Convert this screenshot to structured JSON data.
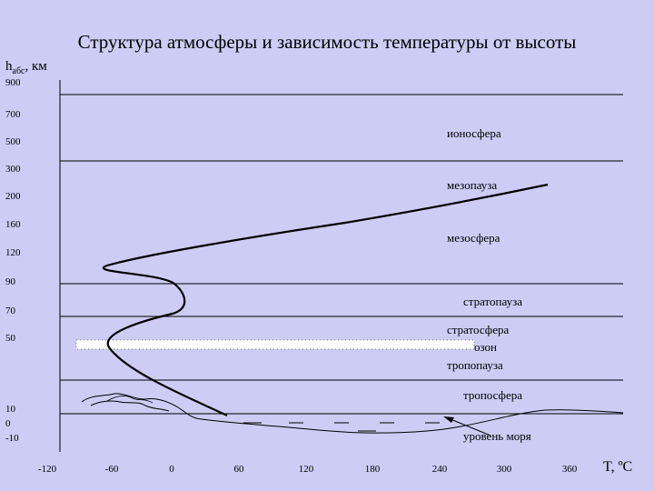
{
  "title": "Структура атмосферы и зависимость температуры от высоты",
  "y_axis": {
    "label_main": "h",
    "label_sub": "абс",
    "label_unit": ", км"
  },
  "y_ticks": [
    "900",
    "700",
    "500",
    "300",
    "200",
    "160",
    "120",
    "90",
    "70",
    "50",
    "10",
    "0",
    "-10"
  ],
  "x_ticks": [
    "-120",
    "-60",
    "0",
    "60",
    "120",
    "180",
    "240",
    "300",
    "360"
  ],
  "x_unit": "T, ºC",
  "layers": {
    "ionosphere": "ионосфера",
    "mesopause": "мезопауза",
    "mesosphere": "мезосфера",
    "stratopause": "стратопауза",
    "stratosphere": "стратосфера",
    "ozone": "озон",
    "tropopause": "тропопауза",
    "troposphere": "тропосфера",
    "sea_level": "уровень моря"
  },
  "colors": {
    "background": "#ccccf5",
    "ozone_band": "#ffffff",
    "lines": "#000000"
  }
}
